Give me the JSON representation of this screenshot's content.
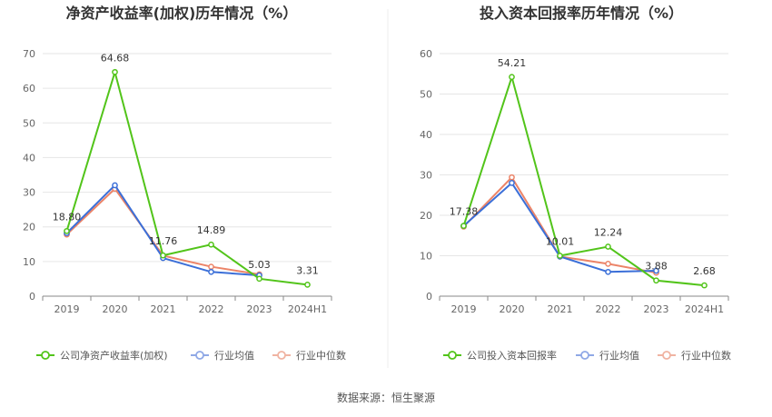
{
  "colors": {
    "company": "#52c41a",
    "avg": "#3b6fd8",
    "median": "#ec8468",
    "avg_legend": "#8fa8e6",
    "median_legend": "#f0b3a2",
    "grid": "#e6e6e6",
    "axis": "#888888",
    "divider": "#eeeeee"
  },
  "source": "数据来源：恒生聚源",
  "chart_data": [
    {
      "type": "line",
      "title": "净资产收益率(加权)历年情况（%）",
      "categories": [
        "2019",
        "2020",
        "2021",
        "2022",
        "2023",
        "2024H1"
      ],
      "ylim": [
        0,
        70
      ],
      "yticks": [
        0,
        10,
        20,
        30,
        40,
        50,
        60,
        70
      ],
      "grid": true,
      "legend_position": "bottom",
      "series": [
        {
          "key": "company",
          "name": "公司净资产收益率(加权)",
          "values": [
            18.8,
            64.68,
            11.76,
            14.89,
            5.03,
            3.31
          ],
          "labels": [
            "18.80",
            "64.68",
            "11.76",
            "14.89",
            "5.03",
            "3.31"
          ]
        },
        {
          "key": "avg",
          "name": "行业均值",
          "values": [
            18.2,
            32.0,
            11.0,
            7.0,
            6.0,
            null
          ]
        },
        {
          "key": "median",
          "name": "行业中位数",
          "values": [
            17.8,
            31.0,
            11.7,
            8.5,
            6.3,
            null
          ]
        }
      ]
    },
    {
      "type": "line",
      "title": "投入资本回报率历年情况（%）",
      "categories": [
        "2019",
        "2020",
        "2021",
        "2022",
        "2023",
        "2024H1"
      ],
      "ylim": [
        0,
        60
      ],
      "yticks": [
        0,
        10,
        20,
        30,
        40,
        50,
        60
      ],
      "grid": true,
      "legend_position": "bottom",
      "series": [
        {
          "key": "company",
          "name": "公司投入资本回报率",
          "values": [
            17.38,
            54.21,
            10.01,
            12.24,
            3.88,
            2.68
          ],
          "labels": [
            "17.38",
            "54.21",
            "10.01",
            "12.24",
            "3.88",
            "2.68"
          ]
        },
        {
          "key": "avg",
          "name": "行业均值",
          "values": [
            17.4,
            28.0,
            9.8,
            6.0,
            6.3,
            null
          ]
        },
        {
          "key": "median",
          "name": "行业中位数",
          "values": [
            17.2,
            29.4,
            9.8,
            8.0,
            5.8,
            null
          ]
        }
      ]
    }
  ]
}
